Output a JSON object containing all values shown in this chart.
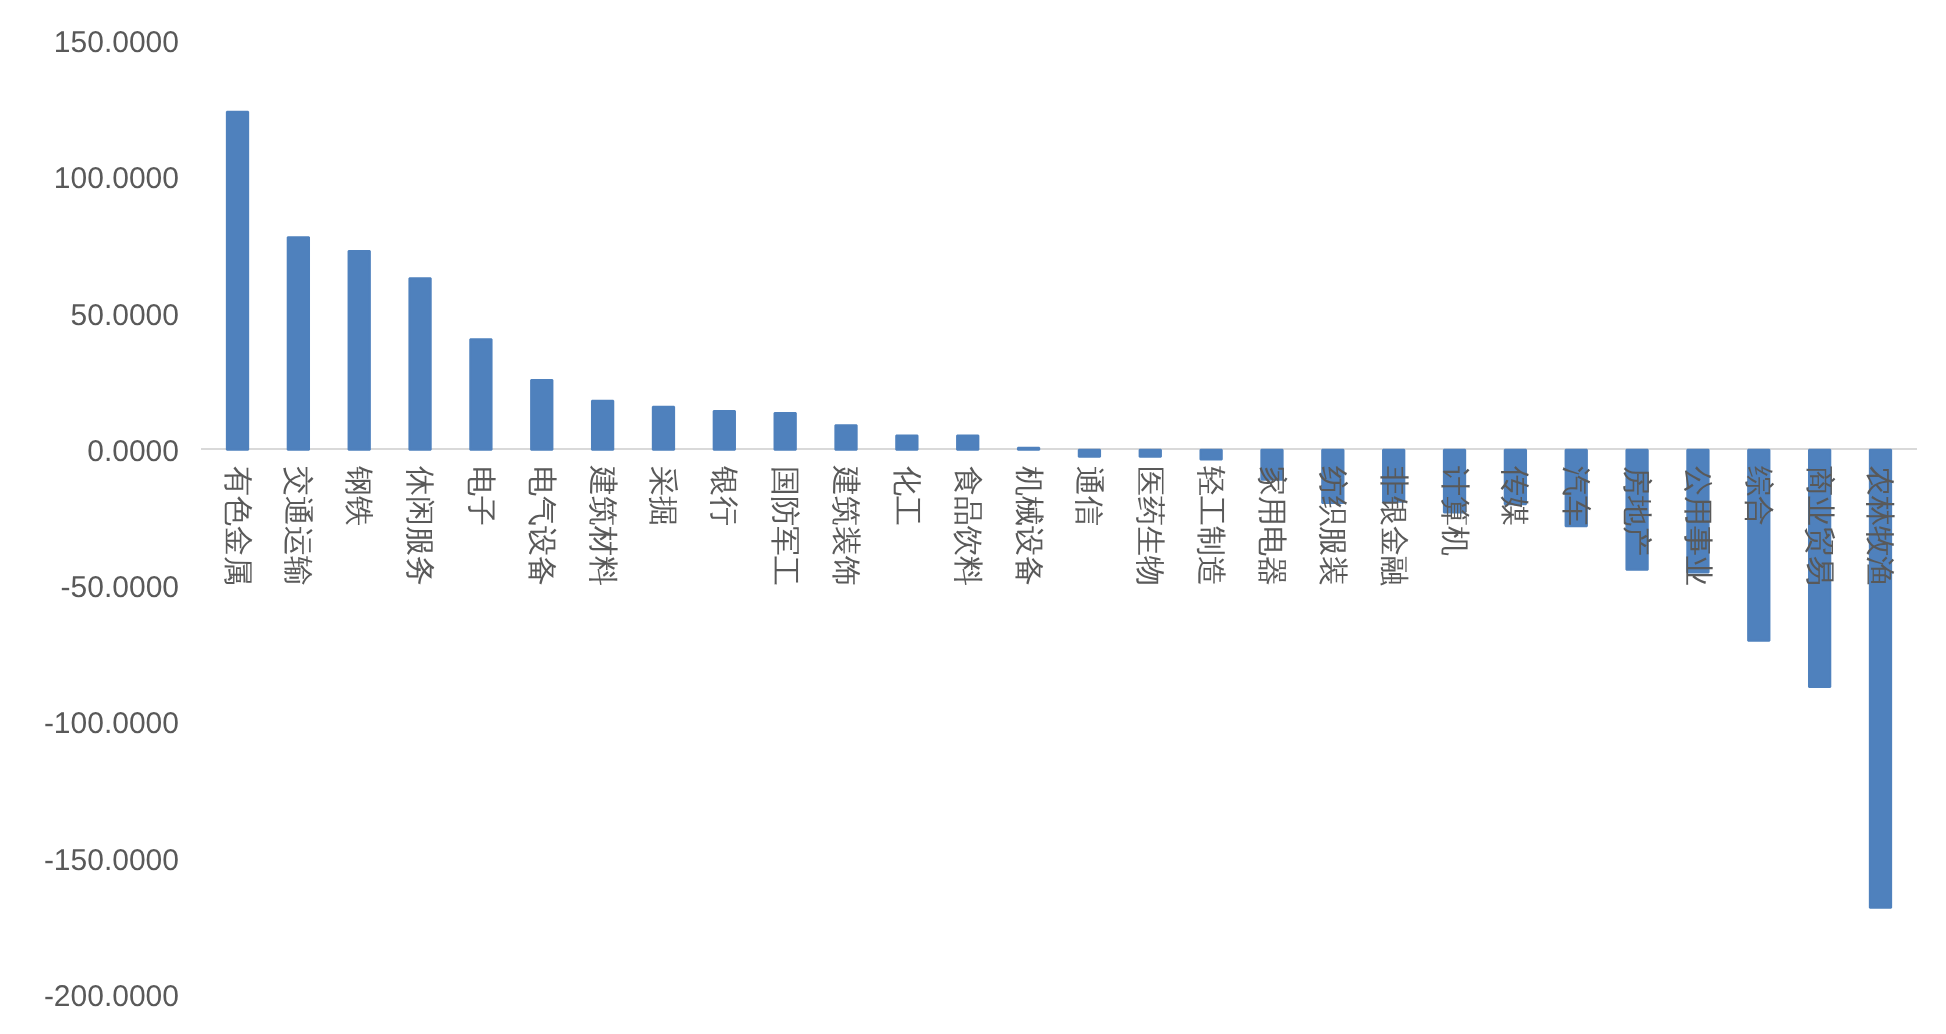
{
  "chart_data": {
    "type": "bar",
    "color": "#4f81bd",
    "categories": [
      "有色金属",
      "交通运输",
      "钢铁",
      "休闲服务",
      "电子",
      "电气设备",
      "建筑材料",
      "采掘",
      "银行",
      "国防军工",
      "建筑装饰",
      "化工",
      "食品饮料",
      "机械设备",
      "通信",
      "医药生物",
      "轻工制造",
      "家用电器",
      "纺织服装",
      "非银金融",
      "计算机",
      "传媒",
      "汽车",
      "房地产",
      "公用事业",
      "综合",
      "商业贸易",
      "农林牧渔"
    ],
    "values": [
      124,
      78,
      73,
      63,
      40.6,
      25.6,
      18,
      15.8,
      14.3,
      13.5,
      9,
      5.3,
      5.3,
      0.8,
      -2.5,
      -2.5,
      -3.5,
      -11,
      -19.5,
      -19,
      -23,
      -20,
      -28,
      -44,
      -45,
      -70,
      -87,
      -168
    ],
    "ylim": [
      -200,
      150
    ],
    "yticks": [
      {
        "value": -200,
        "label": "-200.0000"
      },
      {
        "value": -150,
        "label": "-150.0000"
      },
      {
        "value": -100,
        "label": "-100.0000"
      },
      {
        "value": -50,
        "label": "-50.0000"
      },
      {
        "value": 0,
        "label": "0.0000"
      },
      {
        "value": 50,
        "label": "50.0000"
      },
      {
        "value": 100,
        "label": "100.0000"
      },
      {
        "value": 150,
        "label": "150.0000"
      }
    ],
    "grid": false
  }
}
